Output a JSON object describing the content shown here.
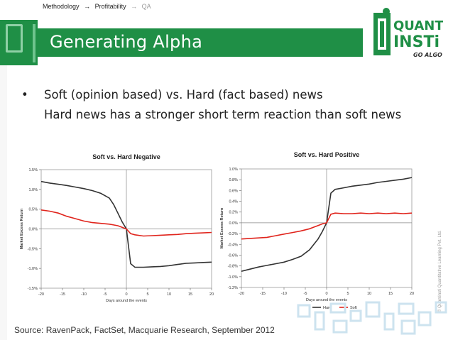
{
  "breadcrumb": {
    "item1": "Methodology",
    "sep1": "→",
    "item2": "Profitability",
    "sep2": "→",
    "item3": "QA"
  },
  "slide": {
    "title": "Generating Alpha",
    "bullet_line1": "Soft (opinion based) vs. Hard (fact based) news",
    "bullet_line2": "Hard news has a stronger short term reaction than soft news",
    "source": "Source: RavenPack, FactSet, Macquarie Research, September 2012"
  },
  "logo": {
    "line1": "QUANT",
    "line2": "INSTi",
    "tagline": "GO ALGO"
  },
  "side_note": "© Quantinsti Quantitative Learning Pvt. Ltd.",
  "colors": {
    "green": "#1f8f46",
    "hard": "#333333",
    "soft": "#e0241c"
  },
  "chart_data": [
    {
      "type": "line",
      "title": "Soft vs. Hard Negative",
      "xlabel": "Days around the events",
      "ylabel": "Market Excess Return",
      "xlim": [
        -20,
        20
      ],
      "ylim": [
        -1.5,
        1.5
      ],
      "xticks": [
        -20,
        -15,
        -10,
        -5,
        0,
        5,
        10,
        15,
        20
      ],
      "yticks": [
        "1.5%",
        "1.0%",
        "0.5%",
        "0.0%",
        "-0.5%",
        "-1.0%",
        "-1.5%"
      ],
      "legend": "none",
      "x": [
        -20,
        -18,
        -16,
        -14,
        -12,
        -10,
        -8,
        -6,
        -4,
        -3,
        -2,
        -1,
        0,
        1,
        2,
        4,
        6,
        8,
        10,
        12,
        14,
        16,
        18,
        20
      ],
      "series": [
        {
          "name": "Hard",
          "values": [
            1.2,
            1.16,
            1.13,
            1.1,
            1.06,
            1.02,
            0.97,
            0.9,
            0.78,
            0.62,
            0.4,
            0.18,
            0.0,
            -0.88,
            -0.97,
            -0.97,
            -0.96,
            -0.95,
            -0.93,
            -0.9,
            -0.87,
            -0.86,
            -0.85,
            -0.84
          ]
        },
        {
          "name": "Soft",
          "values": [
            0.48,
            0.45,
            0.4,
            0.32,
            0.26,
            0.2,
            0.16,
            0.14,
            0.12,
            0.1,
            0.08,
            0.04,
            0.0,
            -0.12,
            -0.15,
            -0.18,
            -0.17,
            -0.16,
            -0.15,
            -0.14,
            -0.12,
            -0.11,
            -0.1,
            -0.09
          ]
        }
      ]
    },
    {
      "type": "line",
      "title": "Soft vs. Hard Positive",
      "xlabel": "Days around the events",
      "ylabel": "Market Excess Return",
      "xlim": [
        -20,
        20
      ],
      "ylim": [
        -1.2,
        1.0
      ],
      "xticks": [
        -20,
        -15,
        -10,
        -5,
        0,
        5,
        10,
        15,
        20
      ],
      "yticks": [
        "1.0%",
        "0.8%",
        "0.6%",
        "0.4%",
        "0.2%",
        "0.0%",
        "-0.2%",
        "-0.4%",
        "-0.6%",
        "-0.8%",
        "-1.0%",
        "-1.2%"
      ],
      "legend": "bottom",
      "x": [
        -20,
        -18,
        -16,
        -14,
        -12,
        -10,
        -8,
        -6,
        -4,
        -3,
        -2,
        -1,
        0,
        1,
        2,
        4,
        6,
        8,
        10,
        12,
        14,
        16,
        18,
        20
      ],
      "series": [
        {
          "name": "Hard",
          "values": [
            -0.9,
            -0.86,
            -0.82,
            -0.79,
            -0.76,
            -0.73,
            -0.68,
            -0.62,
            -0.5,
            -0.4,
            -0.3,
            -0.16,
            0.0,
            0.55,
            0.62,
            0.65,
            0.68,
            0.7,
            0.72,
            0.75,
            0.77,
            0.79,
            0.81,
            0.84
          ]
        },
        {
          "name": "Soft",
          "values": [
            -0.3,
            -0.29,
            -0.28,
            -0.27,
            -0.24,
            -0.21,
            -0.18,
            -0.15,
            -0.11,
            -0.08,
            -0.05,
            -0.02,
            0.0,
            0.16,
            0.18,
            0.17,
            0.17,
            0.18,
            0.17,
            0.18,
            0.17,
            0.18,
            0.17,
            0.18
          ]
        }
      ]
    }
  ]
}
